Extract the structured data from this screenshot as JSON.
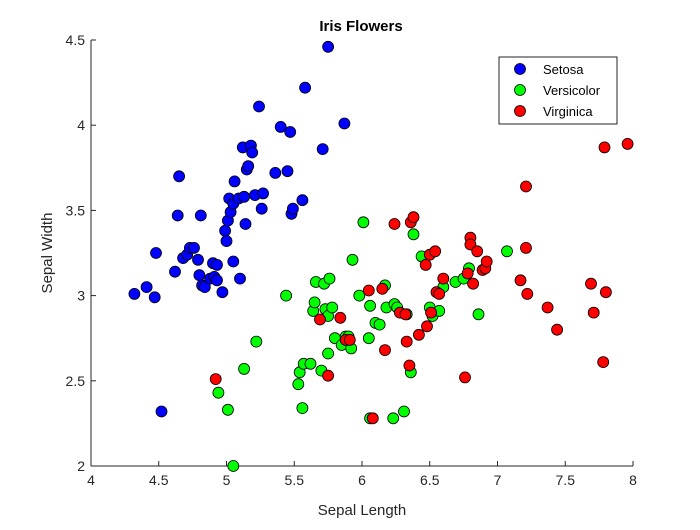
{
  "chart_data": {
    "type": "scatter",
    "title": "Iris Flowers",
    "xlabel": "Sepal Length",
    "ylabel": "Sepal Width",
    "xlim": [
      4,
      8
    ],
    "ylim": [
      2,
      4.5
    ],
    "xticks": [
      "4",
      "4.5",
      "5",
      "5.5",
      "6",
      "6.5",
      "7",
      "7.5",
      "8"
    ],
    "yticks": [
      "2",
      "2.5",
      "3",
      "3.5",
      "4",
      "4.5"
    ],
    "grid": false,
    "legend_position": "top-right",
    "series": [
      {
        "name": "Setosa",
        "color": "#0000ff",
        "points": [
          [
            4.32,
            3.01
          ],
          [
            4.41,
            3.05
          ],
          [
            4.47,
            2.99
          ],
          [
            4.48,
            3.25
          ],
          [
            4.52,
            2.32
          ],
          [
            4.62,
            3.14
          ],
          [
            4.64,
            3.47
          ],
          [
            4.65,
            3.7
          ],
          [
            4.68,
            3.22
          ],
          [
            4.71,
            3.24
          ],
          [
            4.73,
            3.28
          ],
          [
            4.76,
            3.28
          ],
          [
            4.79,
            3.21
          ],
          [
            4.8,
            3.12
          ],
          [
            4.81,
            3.47
          ],
          [
            4.82,
            3.06
          ],
          [
            4.84,
            3.05
          ],
          [
            4.88,
            3.1
          ],
          [
            4.9,
            3.19
          ],
          [
            4.91,
            3.11
          ],
          [
            4.93,
            3.18
          ],
          [
            4.93,
            3.09
          ],
          [
            4.97,
            3.02
          ],
          [
            4.99,
            3.38
          ],
          [
            5.0,
            3.32
          ],
          [
            5.01,
            3.44
          ],
          [
            5.02,
            3.57
          ],
          [
            5.03,
            3.49
          ],
          [
            5.05,
            3.2
          ],
          [
            5.05,
            3.54
          ],
          [
            5.06,
            3.67
          ],
          [
            5.09,
            3.57
          ],
          [
            5.1,
            3.1
          ],
          [
            5.12,
            3.87
          ],
          [
            5.13,
            3.58
          ],
          [
            5.14,
            3.42
          ],
          [
            5.15,
            3.74
          ],
          [
            5.16,
            3.76
          ],
          [
            5.18,
            3.88
          ],
          [
            5.19,
            3.84
          ],
          [
            5.21,
            3.59
          ],
          [
            5.24,
            4.11
          ],
          [
            5.26,
            3.51
          ],
          [
            5.27,
            3.6
          ],
          [
            5.36,
            3.72
          ],
          [
            5.4,
            3.99
          ],
          [
            5.45,
            3.73
          ],
          [
            5.47,
            3.96
          ],
          [
            5.48,
            3.48
          ],
          [
            5.49,
            3.51
          ],
          [
            5.56,
            3.56
          ],
          [
            5.58,
            4.22
          ],
          [
            5.71,
            3.86
          ],
          [
            5.75,
            4.46
          ],
          [
            5.87,
            4.01
          ]
        ]
      },
      {
        "name": "Versicolor",
        "color": "#00ff00",
        "points": [
          [
            4.94,
            2.43
          ],
          [
            5.01,
            2.33
          ],
          [
            5.05,
            2.0
          ],
          [
            5.13,
            2.57
          ],
          [
            5.22,
            2.73
          ],
          [
            5.44,
            3.0
          ],
          [
            5.53,
            2.48
          ],
          [
            5.54,
            2.55
          ],
          [
            5.56,
            2.34
          ],
          [
            5.57,
            2.6
          ],
          [
            5.62,
            2.6
          ],
          [
            5.64,
            2.91
          ],
          [
            5.65,
            2.96
          ],
          [
            5.66,
            3.08
          ],
          [
            5.7,
            2.56
          ],
          [
            5.72,
            3.07
          ],
          [
            5.73,
            2.92
          ],
          [
            5.75,
            2.66
          ],
          [
            5.75,
            2.88
          ],
          [
            5.76,
            3.1
          ],
          [
            5.78,
            2.93
          ],
          [
            5.8,
            2.75
          ],
          [
            5.85,
            2.71
          ],
          [
            5.88,
            2.76
          ],
          [
            5.9,
            2.76
          ],
          [
            5.92,
            2.69
          ],
          [
            5.93,
            3.21
          ],
          [
            5.98,
            3.0
          ],
          [
            6.01,
            3.43
          ],
          [
            6.05,
            2.75
          ],
          [
            6.06,
            2.28
          ],
          [
            6.06,
            2.94
          ],
          [
            6.1,
            2.84
          ],
          [
            6.13,
            2.83
          ],
          [
            6.17,
            3.06
          ],
          [
            6.18,
            2.93
          ],
          [
            6.23,
            2.28
          ],
          [
            6.24,
            2.95
          ],
          [
            6.26,
            2.93
          ],
          [
            6.31,
            2.32
          ],
          [
            6.33,
            2.89
          ],
          [
            6.36,
            2.55
          ],
          [
            6.38,
            3.36
          ],
          [
            6.44,
            3.23
          ],
          [
            6.5,
            2.93
          ],
          [
            6.52,
            2.88
          ],
          [
            6.57,
            2.91
          ],
          [
            6.6,
            3.05
          ],
          [
            6.69,
            3.08
          ],
          [
            6.75,
            3.1
          ],
          [
            6.79,
            3.16
          ],
          [
            6.86,
            2.89
          ],
          [
            7.07,
            3.26
          ]
        ]
      },
      {
        "name": "Virginica",
        "color": "#ff0000",
        "points": [
          [
            4.92,
            2.51
          ],
          [
            5.69,
            2.86
          ],
          [
            5.75,
            2.53
          ],
          [
            5.84,
            2.87
          ],
          [
            5.88,
            2.74
          ],
          [
            5.91,
            2.74
          ],
          [
            6.05,
            3.03
          ],
          [
            6.08,
            2.28
          ],
          [
            6.15,
            3.04
          ],
          [
            6.17,
            2.68
          ],
          [
            6.24,
            3.42
          ],
          [
            6.28,
            2.9
          ],
          [
            6.32,
            2.89
          ],
          [
            6.33,
            2.73
          ],
          [
            6.35,
            2.59
          ],
          [
            6.36,
            3.43
          ],
          [
            6.38,
            3.46
          ],
          [
            6.42,
            2.77
          ],
          [
            6.47,
            3.18
          ],
          [
            6.48,
            2.82
          ],
          [
            6.5,
            3.24
          ],
          [
            6.51,
            2.9
          ],
          [
            6.54,
            3.26
          ],
          [
            6.55,
            3.02
          ],
          [
            6.57,
            3.01
          ],
          [
            6.6,
            3.1
          ],
          [
            6.76,
            2.52
          ],
          [
            6.78,
            3.13
          ],
          [
            6.8,
            3.34
          ],
          [
            6.8,
            3.3
          ],
          [
            6.82,
            3.07
          ],
          [
            6.85,
            3.26
          ],
          [
            6.89,
            3.15
          ],
          [
            6.91,
            3.16
          ],
          [
            6.92,
            3.2
          ],
          [
            7.21,
            3.28
          ],
          [
            7.17,
            3.09
          ],
          [
            7.22,
            3.01
          ],
          [
            7.21,
            3.64
          ],
          [
            7.37,
            2.93
          ],
          [
            7.44,
            2.8
          ],
          [
            7.69,
            3.07
          ],
          [
            7.71,
            2.9
          ],
          [
            7.78,
            2.61
          ],
          [
            7.8,
            3.02
          ],
          [
            7.79,
            3.87
          ],
          [
            7.96,
            3.89
          ]
        ]
      }
    ]
  }
}
